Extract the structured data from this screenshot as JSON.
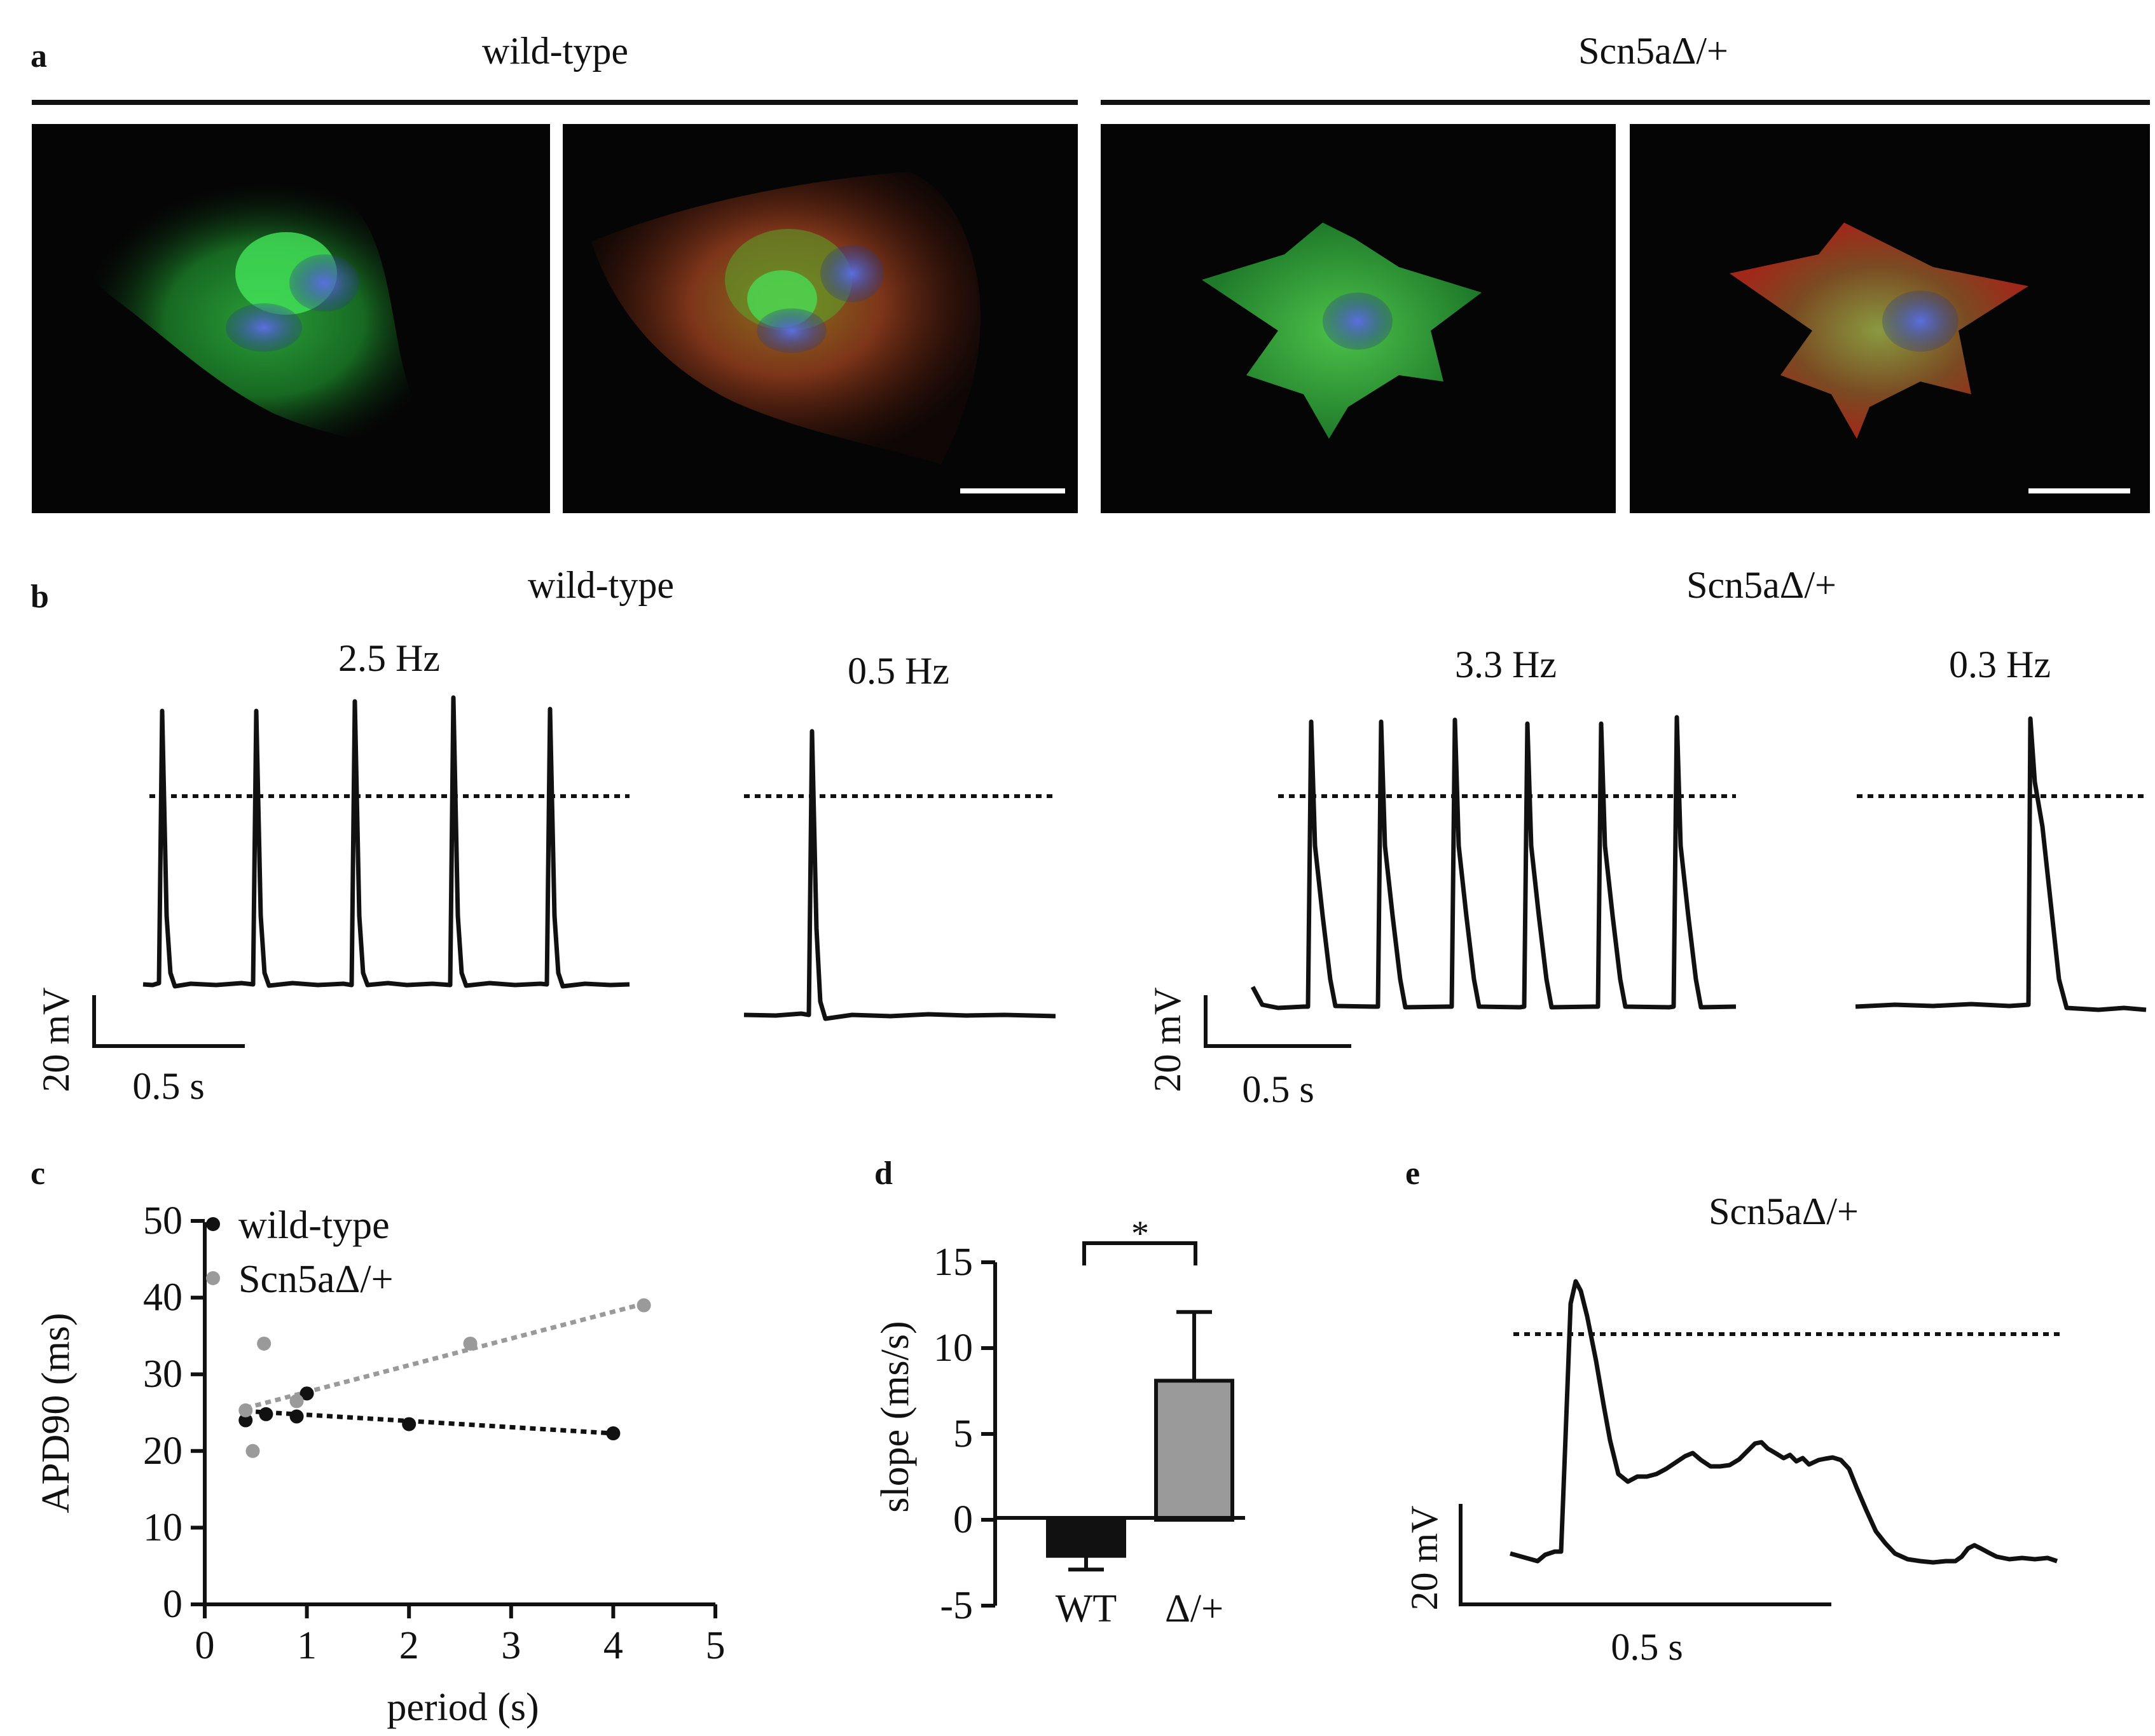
{
  "panel_a": {
    "label": "a",
    "group_left": "wild-type",
    "group_right": "Scn5aΔ/+"
  },
  "panel_b": {
    "label": "b",
    "group_left": "wild-type",
    "group_right": "Scn5aΔ/+",
    "trace_labels": [
      "2.5 Hz",
      "0.5 Hz",
      "3.3 Hz",
      "0.3 Hz"
    ],
    "scalebar_voltage": "20 mV",
    "scalebar_time": "0.5 s"
  },
  "panel_e": {
    "label": "e",
    "title": "Scn5aΔ/+",
    "scalebar_voltage": "20 mV",
    "scalebar_time": "0.5 s"
  },
  "chart_data": [
    {
      "panel_label": "c",
      "type": "scatter",
      "xlabel": "period (s)",
      "ylabel": "APD90 (ms)",
      "xlim": [
        0,
        5
      ],
      "ylim": [
        0,
        50
      ],
      "x_ticks": [
        "0",
        "1",
        "2",
        "3",
        "4",
        "5"
      ],
      "y_ticks": [
        "0",
        "10",
        "20",
        "30",
        "40",
        "50"
      ],
      "legend_placement": "top-left",
      "series": [
        {
          "name": "wild-type",
          "color": "#111111",
          "points": [
            [
              0.4,
              24
            ],
            [
              0.6,
              24.8
            ],
            [
              0.9,
              24.5
            ],
            [
              1.0,
              27.5
            ],
            [
              2.0,
              23.5
            ],
            [
              4.0,
              22.3
            ]
          ],
          "trend": [
            [
              0.4,
              25.2
            ],
            [
              4.0,
              22.3
            ]
          ]
        },
        {
          "name": "Scn5aΔ/+",
          "color": "#9a9a9a",
          "points": [
            [
              0.4,
              25.3
            ],
            [
              0.47,
              20
            ],
            [
              0.58,
              34
            ],
            [
              0.9,
              26.5
            ],
            [
              2.6,
              34
            ],
            [
              4.3,
              39
            ]
          ],
          "trend": [
            [
              0.4,
              25.6
            ],
            [
              4.3,
              39.2
            ]
          ]
        }
      ]
    },
    {
      "panel_label": "d",
      "type": "bar",
      "ylabel": "slope (ms/s)",
      "categories": [
        "WT",
        "Δ/+"
      ],
      "values": [
        -2.1,
        8.1
      ],
      "errors": [
        0.8,
        4.0
      ],
      "colors": [
        "#111111",
        "#9a9a9a"
      ],
      "ylim": [
        -5,
        15
      ],
      "y_ticks": [
        "-5",
        "0",
        "5",
        "10",
        "15"
      ],
      "significance": "*"
    }
  ]
}
